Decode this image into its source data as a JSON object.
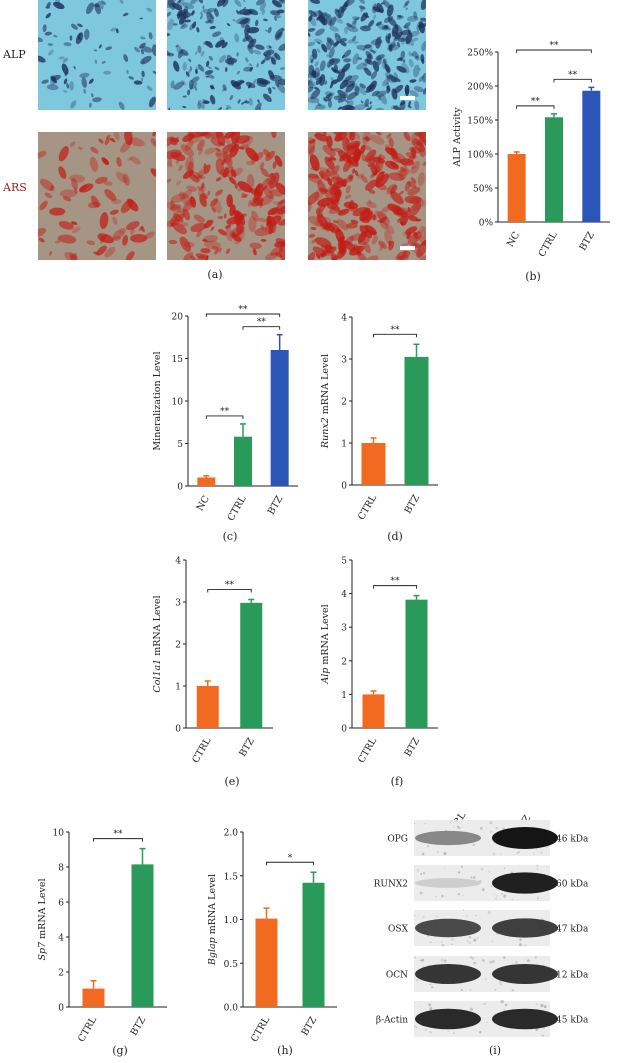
{
  "panels": {
    "a": "(a)",
    "b": "(b)",
    "c": "(c)",
    "d": "(d)",
    "e": "(e)",
    "f": "(f)",
    "g": "(g)",
    "h": "(h)",
    "i": "(i)"
  },
  "images": {
    "row_labels": [
      "ALP",
      "ARS"
    ],
    "colors": {
      "alp_bg": "#7ec8de",
      "alp_stain": "#1f2f5a",
      "ars_bg": "#a59585",
      "ars_stain": "#c21c14",
      "alp_label": "#333333",
      "ars_label": "#9b1c1c"
    }
  },
  "colors": {
    "orange": "#f26a1f",
    "green": "#2a9a5a",
    "blue": "#2b56b8"
  },
  "chart_data": [
    {
      "panel": "b",
      "type": "bar",
      "categories": [
        "NC",
        "CTRL",
        "BTZ"
      ],
      "values": [
        100,
        154,
        193
      ],
      "errors": [
        3,
        5,
        5
      ],
      "colors": [
        "#f26a1f",
        "#2a9a5a",
        "#2b56b8"
      ],
      "ylabel": "ALP Activity",
      "ylim": [
        0,
        250
      ],
      "ticks": [
        0,
        50,
        100,
        150,
        200,
        250
      ],
      "tick_labels": [
        "0%",
        "50%",
        "100%",
        "150%",
        "200%",
        "250%"
      ],
      "brackets": [
        {
          "from": 0,
          "to": 1,
          "label": "**"
        },
        {
          "from": 1,
          "to": 2,
          "label": "**"
        },
        {
          "from": 0,
          "to": 2,
          "label": "**"
        }
      ]
    },
    {
      "panel": "c",
      "type": "bar",
      "categories": [
        "NC",
        "CTRL",
        "BTZ"
      ],
      "values": [
        1.0,
        5.8,
        16.0
      ],
      "errors": [
        0.2,
        1.5,
        1.8
      ],
      "colors": [
        "#f26a1f",
        "#2a9a5a",
        "#2b56b8"
      ],
      "ylabel": "Mineralization Level",
      "ylim": [
        0,
        20
      ],
      "ticks": [
        0,
        5,
        10,
        15,
        20
      ],
      "tick_labels": [
        "0",
        "5",
        "10",
        "15",
        "20"
      ],
      "brackets": [
        {
          "from": 0,
          "to": 1,
          "label": "**"
        },
        {
          "from": 1,
          "to": 2,
          "label": "**"
        },
        {
          "from": 0,
          "to": 2,
          "label": "**"
        }
      ]
    },
    {
      "panel": "d",
      "type": "bar",
      "categories": [
        "CTRL",
        "BTZ"
      ],
      "values": [
        1.0,
        3.05
      ],
      "errors": [
        0.12,
        0.3
      ],
      "colors": [
        "#f26a1f",
        "#2a9a5a"
      ],
      "ylabel_italic": "Runx2",
      "ylabel": " mRNA Level",
      "ylim": [
        0,
        4
      ],
      "ticks": [
        0,
        1,
        2,
        3,
        4
      ],
      "tick_labels": [
        "0",
        "1",
        "2",
        "3",
        "4"
      ],
      "brackets": [
        {
          "from": 0,
          "to": 1,
          "label": "**"
        }
      ]
    },
    {
      "panel": "e",
      "type": "bar",
      "categories": [
        "CTRL",
        "BTZ"
      ],
      "values": [
        1.0,
        2.98
      ],
      "errors": [
        0.12,
        0.08
      ],
      "colors": [
        "#f26a1f",
        "#2a9a5a"
      ],
      "ylabel_italic": "Col1a1",
      "ylabel": " mRNA Level",
      "ylim": [
        0,
        4
      ],
      "ticks": [
        0,
        1,
        2,
        3,
        4
      ],
      "tick_labels": [
        "0",
        "1",
        "2",
        "3",
        "4"
      ],
      "brackets": [
        {
          "from": 0,
          "to": 1,
          "label": "**"
        }
      ]
    },
    {
      "panel": "f",
      "type": "bar",
      "categories": [
        "CTRL",
        "BTZ"
      ],
      "values": [
        1.0,
        3.82
      ],
      "errors": [
        0.1,
        0.12
      ],
      "colors": [
        "#f26a1f",
        "#2a9a5a"
      ],
      "ylabel_italic": "Alp",
      "ylabel": " mRNA Level",
      "ylim": [
        0,
        5
      ],
      "ticks": [
        0,
        1,
        2,
        3,
        4,
        5
      ],
      "tick_labels": [
        "0",
        "1",
        "2",
        "3",
        "4",
        "5"
      ],
      "brackets": [
        {
          "from": 0,
          "to": 1,
          "label": "**"
        }
      ]
    },
    {
      "panel": "g",
      "type": "bar",
      "categories": [
        "CTRL",
        "BTZ"
      ],
      "values": [
        1.05,
        8.15
      ],
      "errors": [
        0.45,
        0.9
      ],
      "colors": [
        "#f26a1f",
        "#2a9a5a"
      ],
      "ylabel_italic": "Sp7",
      "ylabel": " mRNA Level",
      "ylim": [
        0,
        10
      ],
      "ticks": [
        0,
        2,
        4,
        6,
        8,
        10
      ],
      "tick_labels": [
        "0",
        "2",
        "4",
        "6",
        "8",
        "10"
      ],
      "brackets": [
        {
          "from": 0,
          "to": 1,
          "label": "**"
        }
      ]
    },
    {
      "panel": "h",
      "type": "bar",
      "categories": [
        "CTRL",
        "BTZ"
      ],
      "values": [
        1.01,
        1.42
      ],
      "errors": [
        0.12,
        0.12
      ],
      "colors": [
        "#f26a1f",
        "#2a9a5a"
      ],
      "ylabel_italic": "Bglap",
      "ylabel": " mRNA Level",
      "ylim": [
        0,
        2
      ],
      "ticks": [
        0,
        0.5,
        1.0,
        1.5,
        2.0
      ],
      "tick_labels": [
        "0.0",
        "0.5",
        "1.0",
        "1.5",
        "2.0"
      ],
      "brackets": [
        {
          "from": 0,
          "to": 1,
          "label": "*"
        }
      ]
    }
  ],
  "western": {
    "lanes": [
      "CTRL",
      "BTZ"
    ],
    "rows": [
      {
        "name": "OPG",
        "kda": "46 kDa",
        "ctrl": 0.45,
        "btz": 1.0
      },
      {
        "name": "RUNX2",
        "kda": "60 kDa",
        "ctrl": 0.12,
        "btz": 0.95
      },
      {
        "name": "OSX",
        "kda": "47 kDa",
        "ctrl": 0.75,
        "btz": 0.8
      },
      {
        "name": "OCN",
        "kda": "12 kDa",
        "ctrl": 0.85,
        "btz": 0.85
      },
      {
        "name": "β-Actin",
        "kda": "45 kDa",
        "ctrl": 0.9,
        "btz": 0.9
      }
    ]
  }
}
